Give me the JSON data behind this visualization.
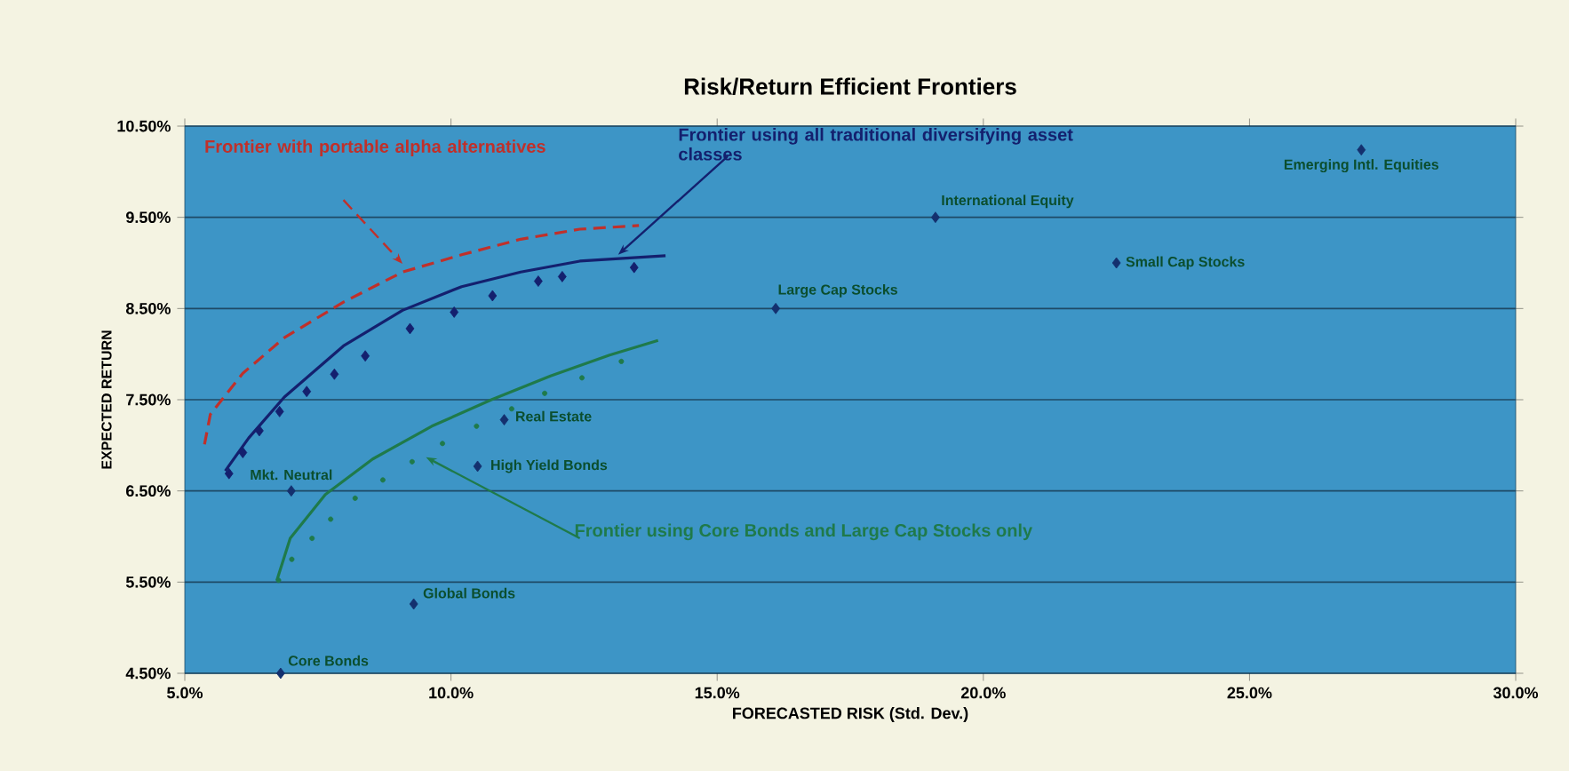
{
  "chart_data": {
    "type": "line",
    "title": "Risk/Return Efficient Frontiers",
    "xlabel": "FORECASTED RISK (Std. Dev.)",
    "ylabel": "EXPECTED RETURN",
    "xlim": [
      5,
      30
    ],
    "ylim": [
      4.5,
      10.5
    ],
    "xticks": [
      {
        "value": 5,
        "label": "5.0%"
      },
      {
        "value": 10,
        "label": "10.0%"
      },
      {
        "value": 15,
        "label": "15.0%"
      },
      {
        "value": 20,
        "label": "20.0%"
      },
      {
        "value": 25,
        "label": "25.0%"
      },
      {
        "value": 30,
        "label": "30.0%"
      }
    ],
    "yticks": [
      {
        "value": 4.5,
        "label": "4.50%"
      },
      {
        "value": 5.5,
        "label": "5.50%"
      },
      {
        "value": 6.5,
        "label": "6.50%"
      },
      {
        "value": 7.5,
        "label": "7.50%"
      },
      {
        "value": 8.5,
        "label": "8.50%"
      },
      {
        "value": 9.5,
        "label": "9.50%"
      },
      {
        "value": 10.5,
        "label": "10.50%"
      }
    ],
    "grid": "y",
    "series": [
      {
        "name": "Frontier with portable alpha alternatives",
        "line_style": "dashed",
        "marker": "none",
        "color": "#c0302a",
        "x": [
          5.37,
          5.48,
          6.09,
          6.87,
          7.98,
          9.09,
          10.2,
          11.31,
          12.42,
          13.53
        ],
        "values": [
          7.01,
          7.34,
          7.79,
          8.18,
          8.57,
          8.9,
          9.09,
          9.26,
          9.37,
          9.41
        ]
      },
      {
        "name": "Frontier using all traditional diversifying asset classes",
        "line_style": "solid",
        "marker": "none",
        "color": "#14206e",
        "x": [
          5.76,
          6.2,
          6.87,
          7.98,
          9.09,
          10.2,
          11.31,
          12.42,
          14.03
        ],
        "values": [
          6.72,
          7.08,
          7.53,
          8.09,
          8.48,
          8.74,
          8.9,
          9.02,
          9.08
        ]
      },
      {
        "type": "scatter",
        "marker": "diamond",
        "color": "#14206e",
        "x": [
          5.83,
          6.09,
          6.4,
          6.78,
          7.29,
          7.81,
          8.39,
          9.23,
          10.06,
          10.78,
          11.64,
          12.09,
          13.44
        ],
        "values": [
          6.69,
          6.92,
          7.16,
          7.37,
          7.59,
          7.78,
          7.98,
          8.28,
          8.46,
          8.64,
          8.8,
          8.85,
          8.95
        ]
      },
      {
        "name": "Frontier using Core Bonds and Large Cap Stocks only",
        "line_style": "solid",
        "marker": "none",
        "color": "#1f7a4a",
        "x": [
          6.73,
          6.98,
          7.64,
          8.53,
          9.64,
          10.76,
          11.87,
          12.98,
          13.89
        ],
        "values": [
          5.52,
          5.98,
          6.46,
          6.85,
          7.21,
          7.5,
          7.76,
          7.99,
          8.15
        ]
      },
      {
        "type": "scatter",
        "marker": "circle",
        "color": "#1f7a4a",
        "x": [
          6.76,
          7.01,
          7.39,
          7.74,
          8.2,
          8.72,
          9.27,
          9.84,
          10.48,
          11.14,
          11.76,
          12.46,
          13.2
        ],
        "values": [
          5.52,
          5.75,
          5.98,
          6.19,
          6.42,
          6.62,
          6.82,
          7.02,
          7.21,
          7.4,
          7.57,
          7.74,
          7.92
        ]
      },
      {
        "type": "scatter",
        "marker": "diamond",
        "color": "#14306e",
        "x": [
          6.8,
          9.3,
          7.0,
          10.5,
          11.0,
          16.1,
          19.1,
          22.5,
          27.1
        ],
        "values": [
          4.5,
          5.26,
          6.5,
          6.77,
          7.28,
          8.5,
          9.5,
          9.0,
          10.24
        ]
      }
    ],
    "annotations": [
      {
        "text": "Core Bonds",
        "x": 6.8,
        "y": 4.5
      },
      {
        "text": "Global Bonds",
        "x": 9.3,
        "y": 5.26
      },
      {
        "text": "Mkt. Neutral",
        "x": 7.0,
        "y": 6.5
      },
      {
        "text": "High Yield Bonds",
        "x": 10.5,
        "y": 6.77
      },
      {
        "text": "Real Estate",
        "x": 11.0,
        "y": 7.28
      },
      {
        "text": "Large Cap Stocks",
        "x": 16.1,
        "y": 8.5
      },
      {
        "text": "International Equity",
        "x": 19.1,
        "y": 9.5
      },
      {
        "text": "Small Cap Stocks",
        "x": 22.5,
        "y": 9.0
      },
      {
        "text": "Emerging Intl. Equities",
        "x": 27.1,
        "y": 10.24
      }
    ]
  }
}
